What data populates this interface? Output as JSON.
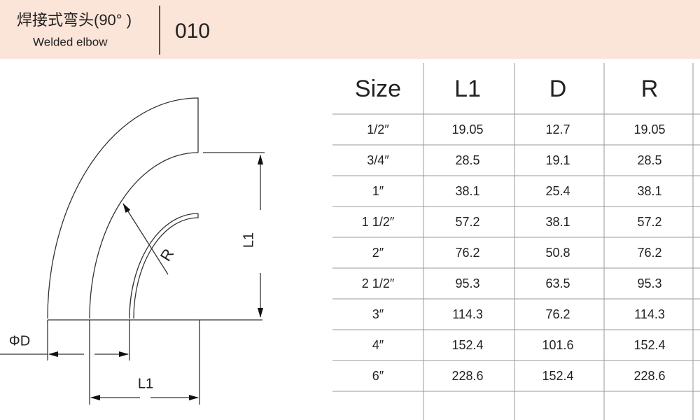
{
  "header": {
    "title": "焊接式弯头(90° )",
    "subtitle": "Welded elbow",
    "code": "010"
  },
  "diagram": {
    "phi_d": "ΦD",
    "l1_bottom": "L1",
    "l1_side": "L1",
    "r": "R"
  },
  "table": {
    "columns": [
      "Size",
      "L1",
      "D",
      "R"
    ],
    "rows": [
      [
        "1/2″",
        "19.05",
        "12.7",
        "19.05"
      ],
      [
        "3/4″",
        "28.5",
        "19.1",
        "28.5"
      ],
      [
        "1″",
        "38.1",
        "25.4",
        "38.1"
      ],
      [
        "1 1/2″",
        "57.2",
        "38.1",
        "57.2"
      ],
      [
        "2″",
        "76.2",
        "50.8",
        "76.2"
      ],
      [
        "2 1/2″",
        "95.3",
        "63.5",
        "95.3"
      ],
      [
        "3″",
        "114.3",
        "76.2",
        "114.3"
      ],
      [
        "4″",
        "152.4",
        "101.6",
        "152.4"
      ],
      [
        "6″",
        "228.6",
        "152.4",
        "228.6"
      ]
    ]
  }
}
